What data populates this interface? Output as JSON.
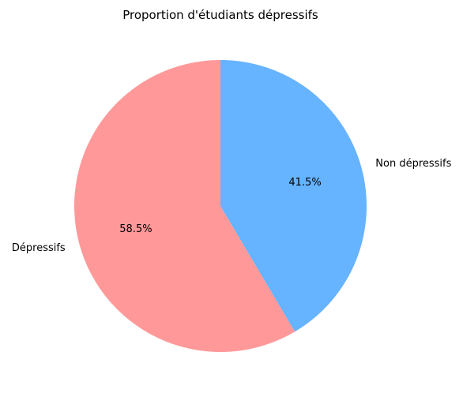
{
  "chart_data": {
    "type": "pie",
    "title": "Proportion d'étudiants dépressifs",
    "slices": [
      {
        "label": "Dépressifs",
        "value": 58.5,
        "pct_label": "58.5%",
        "color": "#ff9999"
      },
      {
        "label": "Non dépressifs",
        "value": 41.5,
        "pct_label": "41.5%",
        "color": "#66b3ff"
      }
    ],
    "start_angle_deg": 90,
    "direction": "counterclockwise",
    "legend": "none"
  }
}
